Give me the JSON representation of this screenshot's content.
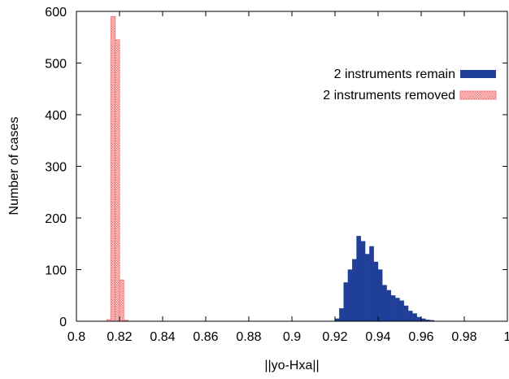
{
  "chart_data": {
    "type": "bar",
    "title": "",
    "xlabel": "||yo-Hxa||",
    "ylabel": "Number of cases",
    "xlim": [
      0.8,
      1.0
    ],
    "ylim": [
      0,
      600
    ],
    "x_ticks": [
      "0.8",
      "0.82",
      "0.84",
      "0.86",
      "0.88",
      "0.9",
      "0.92",
      "0.94",
      "0.96",
      "0.98",
      "1"
    ],
    "y_ticks": [
      "0",
      "100",
      "200",
      "300",
      "400",
      "500",
      "600"
    ],
    "grid": false,
    "legend_position": "top-right",
    "bin_width": 0.002,
    "series": [
      {
        "name": "2 instruments remain",
        "color": "#1f3f99",
        "style": "solid",
        "bins": [
          [
            0.92,
            5
          ],
          [
            0.922,
            25
          ],
          [
            0.924,
            75
          ],
          [
            0.926,
            100
          ],
          [
            0.928,
            120
          ],
          [
            0.93,
            165
          ],
          [
            0.932,
            155
          ],
          [
            0.934,
            130
          ],
          [
            0.936,
            145
          ],
          [
            0.938,
            115
          ],
          [
            0.94,
            100
          ],
          [
            0.942,
            70
          ],
          [
            0.944,
            60
          ],
          [
            0.946,
            50
          ],
          [
            0.948,
            45
          ],
          [
            0.95,
            40
          ],
          [
            0.952,
            30
          ],
          [
            0.954,
            20
          ],
          [
            0.956,
            15
          ],
          [
            0.958,
            8
          ],
          [
            0.96,
            5
          ],
          [
            0.962,
            3
          ],
          [
            0.964,
            2
          ]
        ]
      },
      {
        "name": "2 instruments removed",
        "color": "#f08080",
        "style": "pattern",
        "bins": [
          [
            0.814,
            3
          ],
          [
            0.816,
            590
          ],
          [
            0.818,
            545
          ],
          [
            0.82,
            80
          ],
          [
            0.822,
            2
          ]
        ]
      }
    ]
  }
}
